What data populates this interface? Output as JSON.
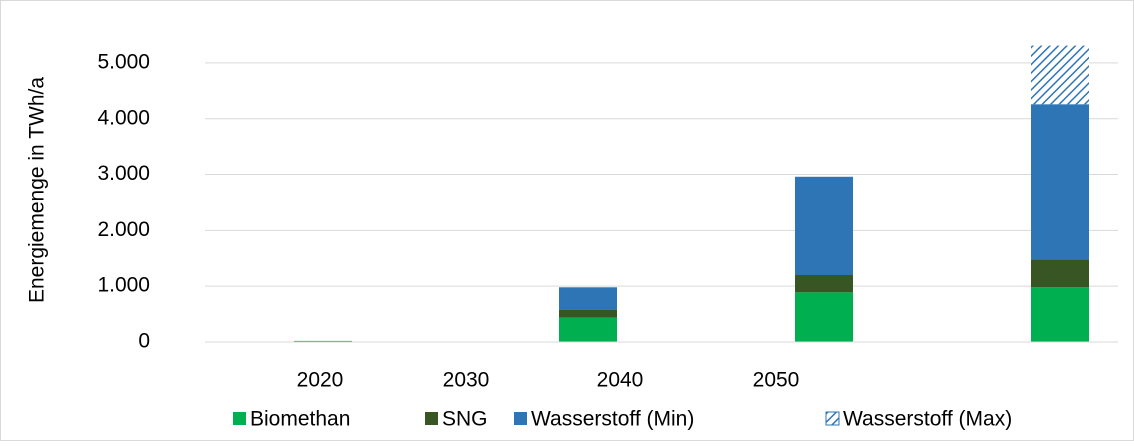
{
  "chart_data": {
    "type": "stacked_bar",
    "ylabel": "Energiemenge in TWh/a",
    "categories": [
      "2020",
      "2030",
      "2040",
      "2050",
      null
    ],
    "series": [
      {
        "name": "Biomethan",
        "color": "#00b050",
        "values": [
          20,
          0,
          440,
          890,
          980
        ]
      },
      {
        "name": "SNG",
        "color": "#375623",
        "values": [
          0,
          0,
          140,
          310,
          500
        ]
      },
      {
        "name": "Wasserstoff (Min)",
        "color": "#2e75b6",
        "values": [
          0,
          0,
          400,
          1760,
          2780
        ]
      },
      {
        "name": "Wasserstoff (Max)",
        "color": "#2e75b6",
        "hatched": true,
        "values": [
          0,
          0,
          0,
          0,
          1050
        ]
      }
    ],
    "ylim": [
      0,
      5500
    ],
    "yticks": [
      0,
      {
        "value": 1000,
        "label": "1.000"
      },
      {
        "value": 2000,
        "label": "2.000"
      },
      {
        "value": 3000,
        "label": "3.000"
      },
      {
        "value": 4000,
        "label": "4.000"
      },
      {
        "value": 5000,
        "label": "5.000"
      }
    ],
    "grid": true,
    "legend": "bottom"
  }
}
